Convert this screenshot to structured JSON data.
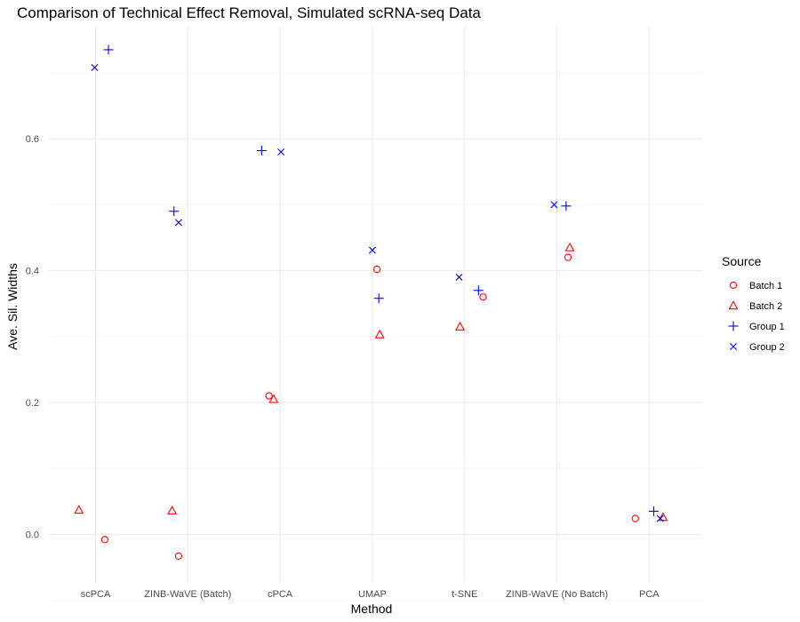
{
  "chart_data": {
    "type": "scatter",
    "title": "Comparison of Technical Effect Removal, Simulated scRNA-seq Data",
    "xlabel": "Method",
    "ylabel": "Ave. Sil. Widths",
    "categories": [
      "scPCA",
      "ZINB-WaVE (Batch)",
      "cPCA",
      "UMAP",
      "t-SNE",
      "ZINB-WaVE (No Batch)",
      "PCA"
    ],
    "ylim": [
      -0.075,
      0.77
    ],
    "yticks": [
      0.0,
      0.2,
      0.4,
      0.6
    ],
    "ytick_labels": [
      "0.0",
      "0.2",
      "0.4",
      "0.6"
    ],
    "grid": true,
    "legend": {
      "title": "Source",
      "position": "right"
    },
    "series": [
      {
        "name": "Batch 1",
        "shape": "circle",
        "color": "#ff0000",
        "points": [
          {
            "category": "scPCA",
            "offset": 0.1,
            "y": -0.008
          },
          {
            "category": "ZINB-WaVE (Batch)",
            "offset": -0.1,
            "y": -0.033
          },
          {
            "category": "cPCA",
            "offset": -0.12,
            "y": 0.21
          },
          {
            "category": "UMAP",
            "offset": 0.05,
            "y": 0.402
          },
          {
            "category": "t-SNE",
            "offset": 0.2,
            "y": 0.36
          },
          {
            "category": "ZINB-WaVE (No Batch)",
            "offset": 0.12,
            "y": 0.42
          },
          {
            "category": "PCA",
            "offset": -0.15,
            "y": 0.024
          }
        ]
      },
      {
        "name": "Batch 2",
        "shape": "triangle",
        "color": "#ff0000",
        "points": [
          {
            "category": "scPCA",
            "offset": -0.18,
            "y": 0.037
          },
          {
            "category": "ZINB-WaVE (Batch)",
            "offset": -0.17,
            "y": 0.036
          },
          {
            "category": "cPCA",
            "offset": -0.07,
            "y": 0.205
          },
          {
            "category": "UMAP",
            "offset": 0.08,
            "y": 0.303
          },
          {
            "category": "t-SNE",
            "offset": -0.05,
            "y": 0.315
          },
          {
            "category": "ZINB-WaVE (No Batch)",
            "offset": 0.14,
            "y": 0.435
          },
          {
            "category": "PCA",
            "offset": 0.15,
            "y": 0.026
          }
        ]
      },
      {
        "name": "Group 1",
        "shape": "plus",
        "color": "#0000ff",
        "points": [
          {
            "category": "scPCA",
            "offset": 0.14,
            "y": 0.735
          },
          {
            "category": "ZINB-WaVE (Batch)",
            "offset": -0.15,
            "y": 0.49
          },
          {
            "category": "cPCA",
            "offset": -0.2,
            "y": 0.582
          },
          {
            "category": "UMAP",
            "offset": 0.07,
            "y": 0.358
          },
          {
            "category": "t-SNE",
            "offset": 0.15,
            "y": 0.37
          },
          {
            "category": "ZINB-WaVE (No Batch)",
            "offset": 0.1,
            "y": 0.498
          },
          {
            "category": "PCA",
            "offset": 0.05,
            "y": 0.035
          }
        ]
      },
      {
        "name": "Group 2",
        "shape": "x",
        "color": "#0000ff",
        "points": [
          {
            "category": "scPCA",
            "offset": -0.01,
            "y": 0.708
          },
          {
            "category": "ZINB-WaVE (Batch)",
            "offset": -0.1,
            "y": 0.473
          },
          {
            "category": "cPCA",
            "offset": 0.01,
            "y": 0.58
          },
          {
            "category": "UMAP",
            "offset": 0.0,
            "y": 0.431
          },
          {
            "category": "t-SNE",
            "offset": -0.06,
            "y": 0.39
          },
          {
            "category": "ZINB-WaVE (No Batch)",
            "offset": -0.03,
            "y": 0.5
          },
          {
            "category": "PCA",
            "offset": 0.12,
            "y": 0.024
          }
        ]
      }
    ]
  }
}
